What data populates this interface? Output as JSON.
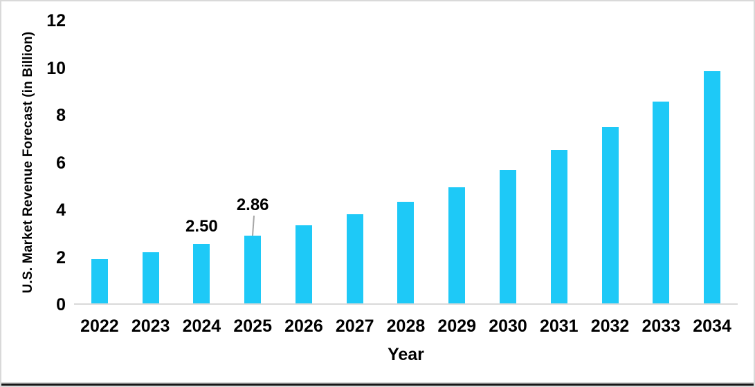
{
  "chart_data": {
    "type": "bar",
    "title": "",
    "xlabel": "Year",
    "ylabel": "U.S. Market Revenue Forecast (in Billion)",
    "categories": [
      "2022",
      "2023",
      "2024",
      "2025",
      "2026",
      "2027",
      "2028",
      "2029",
      "2030",
      "2031",
      "2032",
      "2033",
      "2034"
    ],
    "values": [
      1.88,
      2.15,
      2.5,
      2.86,
      3.29,
      3.77,
      4.3,
      4.92,
      5.63,
      6.49,
      7.45,
      8.53,
      9.81
    ],
    "ylim": [
      0,
      12
    ],
    "yticks": [
      0,
      2,
      4,
      6,
      8,
      10,
      12
    ],
    "grid": false,
    "legend": "none",
    "annotations": [
      {
        "category": "2024",
        "text": "2.50",
        "gap": 10,
        "leader": false,
        "leader_height": 0
      },
      {
        "category": "2025",
        "text": "2.86",
        "gap": 29,
        "leader": true,
        "leader_height": 29
      }
    ],
    "colors": {
      "bar": "#1ec9f7",
      "axis_line": "#d9d9d9",
      "leader_line": "#a6a6a6",
      "text": "#000000",
      "frame_border": "#d9d9d9",
      "bottom_bar": "#161616"
    }
  }
}
